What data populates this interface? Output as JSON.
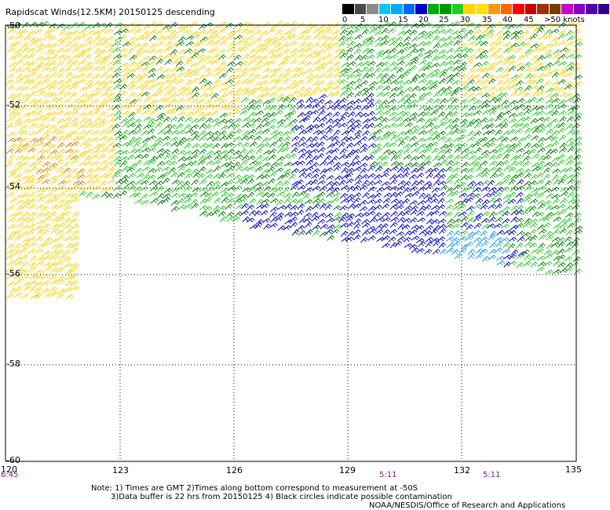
{
  "title": "Rapidscat Winds(12.5KM) 20150125 descending",
  "legend": {
    "labels": [
      "0",
      "5",
      "10",
      "15",
      "20",
      "25",
      "30",
      "35",
      "40",
      "45",
      ">50 knots"
    ],
    "colors": [
      "#000000",
      "#4a4a4a",
      "#8a8a8a",
      "#00c8ff",
      "#00aaff",
      "#0066ff",
      "#0000c8",
      "#00aa00",
      "#009900",
      "#1fd11f",
      "#ffd700",
      "#ffe000",
      "#ff9900",
      "#ff6600",
      "#ff0000",
      "#cc0000",
      "#993300",
      "#7a3d00",
      "#cc00cc",
      "#8800cc",
      "#5500aa",
      "#330088"
    ]
  },
  "axes": {
    "y_ticks": [
      "-50",
      "-52",
      "-54",
      "-56",
      "-58",
      "-60"
    ],
    "x_ticks": [
      "120",
      "123",
      "126",
      "129",
      "132",
      "135"
    ]
  },
  "times": [
    "6:45",
    "5:11",
    "5:11"
  ],
  "notes": {
    "line1": "Note: 1) Times are GMT 2)Times along bottom correspond to measurement at -50S",
    "line2": "3)Data buffer is 22 hrs from 20150125 4) Black circles indicate possible contamination",
    "line3": "NOAA/NESDIS/Office of Research and Applications"
  },
  "wind_colors": {
    "yellow": "#ffd000",
    "orange": "#e07a00",
    "light_green": "#22cc22",
    "dark_green": "#007a00",
    "blue": "#0000cc",
    "light_blue": "#1e9bff"
  }
}
